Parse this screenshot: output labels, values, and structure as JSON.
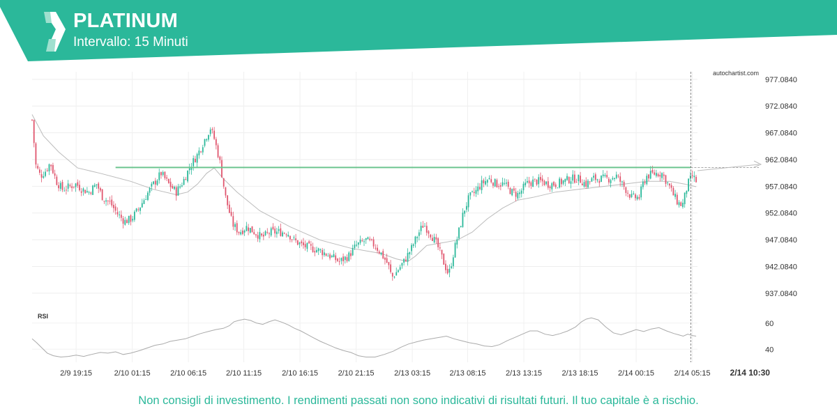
{
  "header": {
    "title": "PLATINUM",
    "interval": "Intervallo: 15 Minuti"
  },
  "colors": {
    "brand": "#2bb89a",
    "bullish": "#2bb89a",
    "bearish": "#e0566e",
    "resistance": "#6cc48f",
    "moving_average": "#bbbbbb",
    "rsi_line": "#aaaaaa"
  },
  "watermark": "autochartist.com",
  "disclaimer": "Non consigli di investimento. I rendimenti passati non sono indicativi di risultati futuri. Il tuo capitale è a rischio.",
  "chart_data": [
    {
      "type": "candlestick",
      "series": [
        {
          "name": "",
          "role": "price-path",
          "points": [
            [
              0,
              969.5
            ],
            [
              5,
              961
            ],
            [
              11,
              959
            ],
            [
              18,
              960
            ],
            [
              24,
              961.5
            ],
            [
              32,
              958
            ],
            [
              40,
              956.5
            ],
            [
              49,
              957
            ],
            [
              58,
              957.5
            ],
            [
              66,
              956.5
            ],
            [
              75,
              956
            ],
            [
              85,
              957.5
            ],
            [
              93,
              955
            ],
            [
              103,
              954
            ],
            [
              112,
              952
            ],
            [
              122,
              950.5
            ],
            [
              131,
              951
            ],
            [
              141,
              953
            ],
            [
              151,
              955.5
            ],
            [
              160,
              957.5
            ],
            [
              170,
              959.5
            ],
            [
              180,
              957.5
            ],
            [
              190,
              956
            ],
            [
              199,
              958
            ],
            [
              209,
              961
            ],
            [
              218,
              963
            ],
            [
              228,
              966
            ],
            [
              235,
              968
            ],
            [
              240,
              966
            ],
            [
              247,
              962
            ],
            [
              255,
              955
            ],
            [
              264,
              950
            ],
            [
              273,
              948.5
            ],
            [
              283,
              949.5
            ],
            [
              293,
              948.5
            ],
            [
              303,
              947.5
            ],
            [
              314,
              948.5
            ],
            [
              326,
              948.5
            ],
            [
              336,
              948.5
            ],
            [
              345,
              947
            ],
            [
              356,
              946
            ],
            [
              368,
              945.5
            ],
            [
              380,
              945
            ],
            [
              393,
              944
            ],
            [
              405,
              943
            ],
            [
              417,
              944
            ],
            [
              427,
              946
            ],
            [
              440,
              947
            ],
            [
              452,
              946
            ],
            [
              460,
              944.5
            ],
            [
              469,
              942.5
            ],
            [
              474,
              940
            ],
            [
              480,
              941
            ],
            [
              490,
              943
            ],
            [
              500,
              945.5
            ],
            [
              508,
              948
            ],
            [
              516,
              950
            ],
            [
              526,
              948
            ],
            [
              534,
              946
            ],
            [
              542,
              943
            ],
            [
              549,
              940.5
            ],
            [
              556,
              945
            ],
            [
              563,
              949
            ],
            [
              569,
              952.5
            ],
            [
              576,
              955
            ],
            [
              584,
              956
            ],
            [
              592,
              957.5
            ],
            [
              602,
              958.5
            ],
            [
              612,
              957.5
            ],
            [
              622,
              957.5
            ],
            [
              632,
              956
            ],
            [
              641,
              955.5
            ],
            [
              651,
              957.5
            ],
            [
              661,
              958
            ],
            [
              671,
              958
            ],
            [
              680,
              957.5
            ],
            [
              690,
              957.5
            ],
            [
              700,
              958
            ],
            [
              710,
              958.5
            ],
            [
              720,
              958.5
            ],
            [
              730,
              957.5
            ],
            [
              740,
              958.5
            ],
            [
              750,
              958.5
            ],
            [
              760,
              958.5
            ],
            [
              770,
              959
            ],
            [
              780,
              957
            ],
            [
              790,
              955
            ],
            [
              800,
              955
            ],
            [
              805,
              957.5
            ],
            [
              810,
              959
            ],
            [
              821,
              959.5
            ],
            [
              830,
              959.5
            ],
            [
              840,
              957
            ],
            [
              845,
              955.5
            ],
            [
              851,
              954
            ],
            [
              857,
              953.5
            ],
            [
              864,
              957.5
            ],
            [
              870,
              959
            ],
            [
              875,
              958
            ]
          ]
        },
        {
          "name": "",
          "role": "moving-average",
          "points": [
            [
              0,
              970.5
            ],
            [
              15,
              966.5
            ],
            [
              35,
              963.5
            ],
            [
              60,
              960.5
            ],
            [
              90,
              959.5
            ],
            [
              130,
              958
            ],
            [
              160,
              956.5
            ],
            [
              190,
              955.5
            ],
            [
              205,
              956
            ],
            [
              218,
              957.5
            ],
            [
              230,
              959.5
            ],
            [
              240,
              960.5
            ],
            [
              252,
              958.5
            ],
            [
              270,
              956
            ],
            [
              300,
              952.5
            ],
            [
              340,
              949.5
            ],
            [
              380,
              947
            ],
            [
              420,
              945.5
            ],
            [
              460,
              944.5
            ],
            [
              480,
              943.5
            ],
            [
              495,
              943
            ],
            [
              505,
              944
            ],
            [
              520,
              946
            ],
            [
              540,
              946.5
            ],
            [
              560,
              947
            ],
            [
              580,
              948.5
            ],
            [
              600,
              951
            ],
            [
              620,
              953
            ],
            [
              640,
              954.5
            ],
            [
              660,
              955
            ],
            [
              690,
              956
            ],
            [
              720,
              956.5
            ],
            [
              750,
              957
            ],
            [
              780,
              957.5
            ],
            [
              810,
              958
            ],
            [
              840,
              958
            ],
            [
              860,
              957.5
            ],
            [
              875,
              957
            ]
          ]
        }
      ],
      "markers": {
        "first_x": 0,
        "last_x": 875,
        "vertical_line_x": 868
      },
      "resistance_level": 960.6,
      "y_ticks": [
        977.084,
        972.084,
        967.084,
        962.084,
        957.084,
        952.084,
        947.084,
        942.084,
        937.084
      ],
      "y_tick_labels": [
        "977.0840",
        "972.0840",
        "967.0840",
        "962.0840",
        "957.0840",
        "952.0840",
        "947.0840",
        "942.0840",
        "937.0840"
      ],
      "ylim": [
        935.5,
        978.5
      ],
      "x_tick_labels": [
        "2/9 19:15",
        "2/10 01:15",
        "2/10 06:15",
        "2/10 11:15",
        "2/10 16:15",
        "2/10 21:15",
        "2/13 03:15",
        "2/13 08:15",
        "2/13 13:15",
        "2/13 18:15",
        "2/14 00:15",
        "2/14 05:15",
        "2/14 10:30"
      ],
      "x_tick_positions": [
        58,
        132,
        206,
        279,
        353,
        427,
        501,
        574,
        648,
        722,
        796,
        870,
        946
      ],
      "grid": true
    },
    {
      "type": "line",
      "title": "RSI",
      "y_tick_labels": [
        "60",
        "40"
      ],
      "y_ticks": [
        60,
        40
      ],
      "ylim": [
        30,
        70
      ],
      "x_range": [
        0,
        875
      ],
      "series": [
        {
          "name": "",
          "values": [
            [
              0,
              48
            ],
            [
              6,
              45
            ],
            [
              13,
              41
            ],
            [
              20,
              37
            ],
            [
              28,
              35
            ],
            [
              38,
              34
            ],
            [
              48,
              34.5
            ],
            [
              58,
              35.5
            ],
            [
              68,
              34.5
            ],
            [
              78,
              36
            ],
            [
              90,
              37.5
            ],
            [
              100,
              37
            ],
            [
              110,
              38
            ],
            [
              120,
              36
            ],
            [
              130,
              37
            ],
            [
              142,
              39
            ],
            [
              152,
              41
            ],
            [
              162,
              43
            ],
            [
              172,
              44
            ],
            [
              182,
              46
            ],
            [
              192,
              47
            ],
            [
              202,
              48
            ],
            [
              212,
              50
            ],
            [
              222,
              52
            ],
            [
              232,
              53.5
            ],
            [
              242,
              55
            ],
            [
              252,
              56
            ],
            [
              260,
              58
            ],
            [
              266,
              61
            ],
            [
              272,
              62
            ],
            [
              280,
              63
            ],
            [
              288,
              62
            ],
            [
              296,
              60
            ],
            [
              304,
              59
            ],
            [
              312,
              61
            ],
            [
              320,
              62.5
            ],
            [
              330,
              60.5
            ],
            [
              338,
              58.5
            ],
            [
              346,
              56
            ],
            [
              354,
              54
            ],
            [
              362,
              51.5
            ],
            [
              370,
              49
            ],
            [
              380,
              46
            ],
            [
              390,
              43.5
            ],
            [
              400,
              41
            ],
            [
              410,
              39
            ],
            [
              420,
              37.5
            ],
            [
              430,
              35
            ],
            [
              440,
              34
            ],
            [
              452,
              34
            ],
            [
              464,
              36
            ],
            [
              476,
              38.5
            ],
            [
              486,
              41.5
            ],
            [
              496,
              44
            ],
            [
              506,
              45.5
            ],
            [
              516,
              47
            ],
            [
              526,
              48
            ],
            [
              536,
              49
            ],
            [
              546,
              50
            ],
            [
              556,
              48
            ],
            [
              566,
              46.5
            ],
            [
              576,
              45
            ],
            [
              586,
              44
            ],
            [
              596,
              42.5
            ],
            [
              606,
              42
            ],
            [
              616,
              43.5
            ],
            [
              626,
              46.5
            ],
            [
              636,
              49
            ],
            [
              646,
              51.5
            ],
            [
              656,
              54
            ],
            [
              666,
              54
            ],
            [
              676,
              51.5
            ],
            [
              686,
              50.5
            ],
            [
              696,
              52
            ],
            [
              706,
              54
            ],
            [
              716,
              57
            ],
            [
              724,
              61
            ],
            [
              730,
              63
            ],
            [
              737,
              64
            ],
            [
              746,
              62.5
            ],
            [
              756,
              57
            ],
            [
              766,
              52.5
            ],
            [
              776,
              51
            ],
            [
              786,
              53
            ],
            [
              796,
              55
            ],
            [
              806,
              53.5
            ],
            [
              816,
              55.5
            ],
            [
              826,
              56.5
            ],
            [
              836,
              54
            ],
            [
              846,
              52
            ],
            [
              852,
              51
            ],
            [
              858,
              50
            ],
            [
              864,
              51.5
            ],
            [
              870,
              50.5
            ],
            [
              875,
              50
            ]
          ]
        }
      ]
    }
  ]
}
